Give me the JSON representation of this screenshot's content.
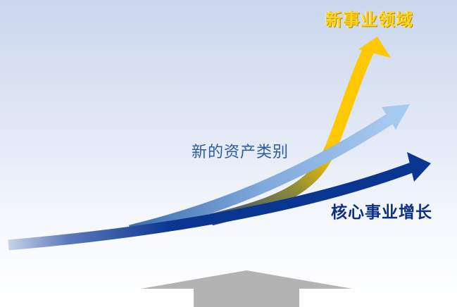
{
  "labels": {
    "new_fields": "新事业领域",
    "new_assets": "新的资产类别",
    "core_growth": "核心事业增长"
  },
  "colors": {
    "background_top": "#c9d6ec",
    "gold_arrow": "#ffc800",
    "light_blue_arrow": "#9dc1e8",
    "navy_arrow": "#0a3591",
    "base_arrow": "#b3b3b3"
  },
  "icons": {
    "core_growth": "navy-growth-arrow-icon",
    "new_assets": "light-blue-growth-arrow-icon",
    "new_fields": "gold-growth-arrow-icon",
    "base": "gray-up-arrow-icon"
  }
}
